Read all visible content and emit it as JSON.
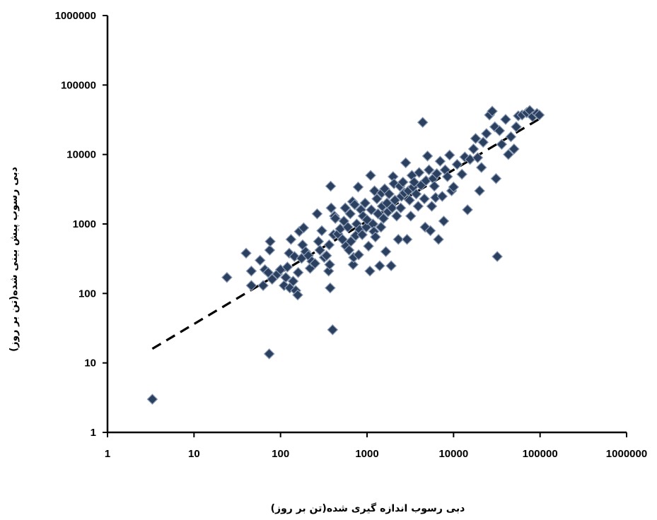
{
  "chart_data": {
    "type": "scatter",
    "xlabel": "دبی رسوب اندازه گیری شده(تن بر روز)",
    "ylabel": "دبی رسوب پیش بینی شده(تن بر روز)",
    "x_scale": "log",
    "y_scale": "log",
    "xlim": [
      1,
      1000000
    ],
    "ylim": [
      1,
      1000000
    ],
    "x_ticks": [
      "1",
      "10",
      "100",
      "1000",
      "10000",
      "100000",
      "1000000"
    ],
    "y_ticks": [
      "1",
      "10",
      "100",
      "1000",
      "10000",
      "100000",
      "1000000"
    ],
    "grid": false,
    "legend": "none",
    "marker": "diamond",
    "marker_color": "#2b3f5e",
    "marker_edge_color": "#8a9bb5",
    "trendline": {
      "style": "dashed",
      "color": "#000000",
      "x": [
        3.3,
        100000
      ],
      "y": [
        16,
        33000
      ]
    },
    "points": [
      [
        3.3,
        3
      ],
      [
        24,
        170
      ],
      [
        40,
        380
      ],
      [
        46,
        130
      ],
      [
        46,
        210
      ],
      [
        58,
        300
      ],
      [
        63,
        130
      ],
      [
        66,
        220
      ],
      [
        72,
        200
      ],
      [
        74,
        13.5
      ],
      [
        75,
        420
      ],
      [
        76,
        560
      ],
      [
        80,
        160
      ],
      [
        92,
        190
      ],
      [
        100,
        220
      ],
      [
        110,
        130
      ],
      [
        115,
        170
      ],
      [
        120,
        240
      ],
      [
        126,
        380
      ],
      [
        128,
        120
      ],
      [
        132,
        600
      ],
      [
        140,
        150
      ],
      [
        145,
        340
      ],
      [
        150,
        110
      ],
      [
        158,
        95
      ],
      [
        160,
        200
      ],
      [
        165,
        780
      ],
      [
        175,
        320
      ],
      [
        180,
        500
      ],
      [
        185,
        880
      ],
      [
        195,
        400
      ],
      [
        210,
        350
      ],
      [
        220,
        230
      ],
      [
        230,
        290
      ],
      [
        250,
        270
      ],
      [
        265,
        1400
      ],
      [
        275,
        560
      ],
      [
        285,
        420
      ],
      [
        300,
        800
      ],
      [
        320,
        330
      ],
      [
        340,
        350
      ],
      [
        360,
        210
      ],
      [
        365,
        500
      ],
      [
        370,
        260
      ],
      [
        375,
        120
      ],
      [
        380,
        3500
      ],
      [
        385,
        1700
      ],
      [
        400,
        30
      ],
      [
        410,
        700
      ],
      [
        420,
        1300
      ],
      [
        430,
        1200
      ],
      [
        460,
        720
      ],
      [
        490,
        850
      ],
      [
        520,
        600
      ],
      [
        540,
        1100
      ],
      [
        560,
        1700
      ],
      [
        570,
        480
      ],
      [
        600,
        900
      ],
      [
        620,
        420
      ],
      [
        640,
        1400
      ],
      [
        650,
        560
      ],
      [
        680,
        2100
      ],
      [
        690,
        260
      ],
      [
        700,
        330
      ],
      [
        720,
        1900
      ],
      [
        740,
        680
      ],
      [
        760,
        1000
      ],
      [
        790,
        3400
      ],
      [
        800,
        360
      ],
      [
        820,
        830
      ],
      [
        850,
        1600
      ],
      [
        880,
        700
      ],
      [
        900,
        1300
      ],
      [
        950,
        2000
      ],
      [
        980,
        900
      ],
      [
        1000,
        1150
      ],
      [
        1040,
        480
      ],
      [
        1080,
        210
      ],
      [
        1100,
        5000
      ],
      [
        1120,
        1600
      ],
      [
        1170,
        1000
      ],
      [
        1200,
        780
      ],
      [
        1220,
        3000
      ],
      [
        1250,
        650
      ],
      [
        1300,
        2300
      ],
      [
        1340,
        1400
      ],
      [
        1400,
        250
      ],
      [
        1450,
        900
      ],
      [
        1480,
        2800
      ],
      [
        1500,
        1800
      ],
      [
        1550,
        1200
      ],
      [
        1600,
        3200
      ],
      [
        1650,
        400
      ],
      [
        1700,
        2000
      ],
      [
        1750,
        1500
      ],
      [
        1800,
        2700
      ],
      [
        1900,
        250
      ],
      [
        1950,
        1700
      ],
      [
        2000,
        4800
      ],
      [
        2050,
        3800
      ],
      [
        2100,
        2200
      ],
      [
        2200,
        1300
      ],
      [
        2300,
        600
      ],
      [
        2400,
        3500
      ],
      [
        2450,
        1700
      ],
      [
        2500,
        2500
      ],
      [
        2600,
        4000
      ],
      [
        2700,
        2800
      ],
      [
        2800,
        7600
      ],
      [
        2900,
        600
      ],
      [
        3000,
        3000
      ],
      [
        3100,
        2200
      ],
      [
        3200,
        1300
      ],
      [
        3300,
        5000
      ],
      [
        3400,
        3400
      ],
      [
        3500,
        4000
      ],
      [
        3700,
        2700
      ],
      [
        3900,
        1800
      ],
      [
        4000,
        5500
      ],
      [
        4200,
        3600
      ],
      [
        4400,
        29000
      ],
      [
        4600,
        2300
      ],
      [
        4700,
        900
      ],
      [
        4800,
        4200
      ],
      [
        5000,
        9500
      ],
      [
        5200,
        6000
      ],
      [
        5400,
        800
      ],
      [
        5600,
        1800
      ],
      [
        5800,
        4500
      ],
      [
        6000,
        3500
      ],
      [
        6200,
        2400
      ],
      [
        6400,
        5300
      ],
      [
        6700,
        600
      ],
      [
        7000,
        8000
      ],
      [
        7400,
        2500
      ],
      [
        7700,
        1100
      ],
      [
        8000,
        6000
      ],
      [
        8500,
        4800
      ],
      [
        9000,
        9800
      ],
      [
        9500,
        3000
      ],
      [
        10000,
        3400
      ],
      [
        11000,
        7200
      ],
      [
        12500,
        5200
      ],
      [
        13500,
        9200
      ],
      [
        14500,
        1600
      ],
      [
        15500,
        8500
      ],
      [
        17000,
        12000
      ],
      [
        18000,
        17000
      ],
      [
        19000,
        9000
      ],
      [
        20000,
        3000
      ],
      [
        21000,
        6500
      ],
      [
        22000,
        15000
      ],
      [
        24000,
        20000
      ],
      [
        26000,
        37000
      ],
      [
        28000,
        42000
      ],
      [
        30000,
        25000
      ],
      [
        31000,
        4500
      ],
      [
        32000,
        340
      ],
      [
        34000,
        22000
      ],
      [
        36000,
        14000
      ],
      [
        40000,
        32000
      ],
      [
        43000,
        10000
      ],
      [
        46000,
        18000
      ],
      [
        50000,
        12000
      ],
      [
        53000,
        25000
      ],
      [
        56000,
        36000
      ],
      [
        62000,
        37000
      ],
      [
        70000,
        40000
      ],
      [
        76000,
        43000
      ],
      [
        82000,
        35000
      ],
      [
        92000,
        39000
      ],
      [
        98000,
        37000
      ]
    ]
  }
}
